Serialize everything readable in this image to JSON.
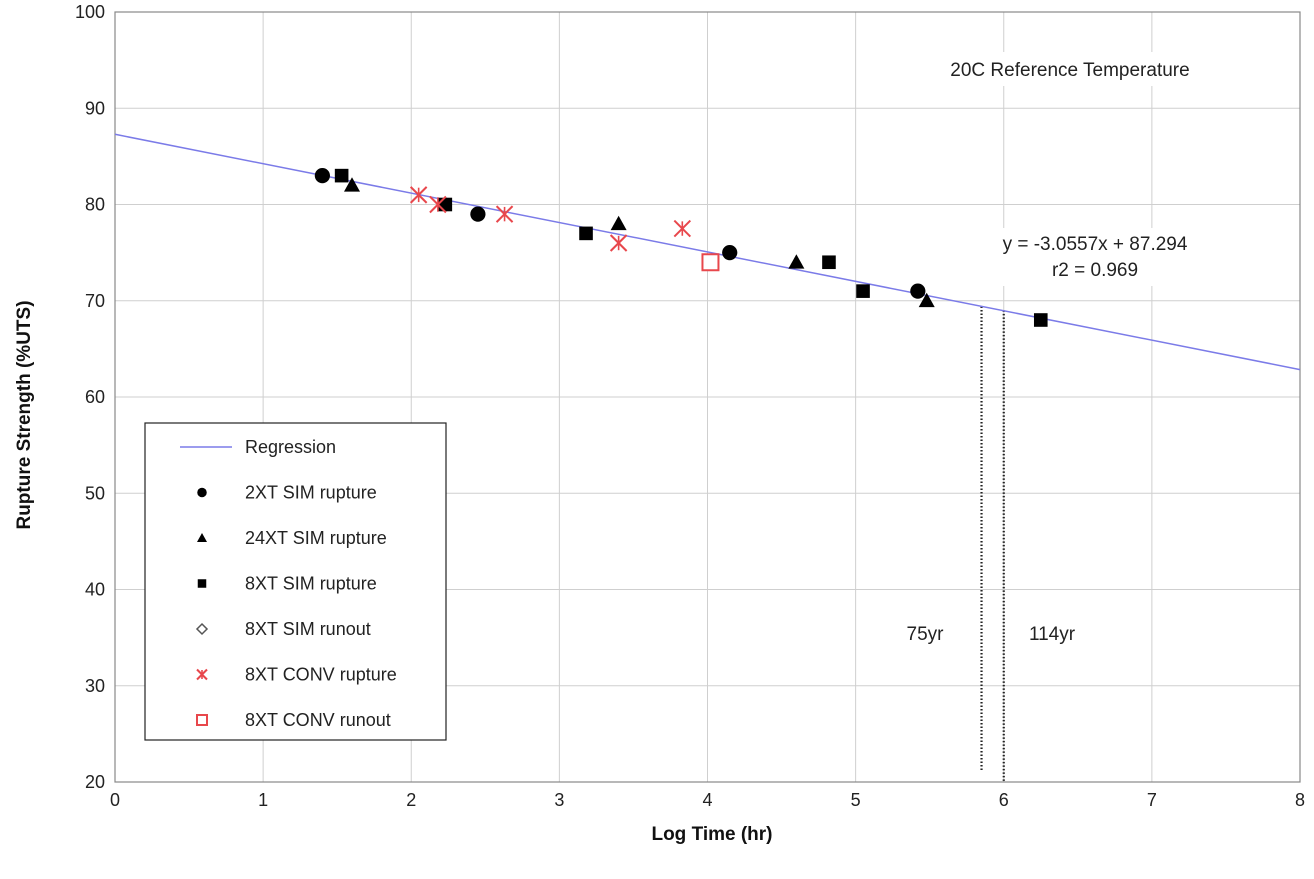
{
  "chart_data": {
    "type": "scatter",
    "xlabel": "Log Time (hr)",
    "ylabel": "Rupture Strength (%UTS)",
    "xlim": [
      0,
      8
    ],
    "ylim": [
      20,
      100
    ],
    "x_ticks": [
      "0",
      "1",
      "2",
      "3",
      "4",
      "5",
      "6",
      "7",
      "8"
    ],
    "y_ticks": [
      "20",
      "30",
      "40",
      "50",
      "60",
      "70",
      "80",
      "90",
      "100"
    ],
    "grid": true,
    "legend_position": "bottom-left",
    "annotations": {
      "reference": "20C Reference Temperature",
      "equation": "y = -3.0557x + 87.294",
      "r2": "r2 = 0.969",
      "label_75": "75yr",
      "label_114": "114yr"
    },
    "vertical_markers": [
      {
        "x": 5.85,
        "y_top": 69.4
      },
      {
        "x": 6.0,
        "y_top": 69.0
      }
    ],
    "regression": {
      "name": "Regression",
      "slope": -3.0557,
      "intercept": 87.294,
      "x_range": [
        0,
        8
      ],
      "color": "#7b7be8"
    },
    "series": [
      {
        "name": "2XT SIM rupture",
        "marker": "circle",
        "color": "#000000",
        "points": [
          [
            1.4,
            83
          ],
          [
            2.45,
            79
          ],
          [
            4.15,
            75
          ],
          [
            5.42,
            71
          ]
        ]
      },
      {
        "name": "24XT SIM rupture",
        "marker": "triangle",
        "color": "#000000",
        "points": [
          [
            1.6,
            82
          ],
          [
            3.4,
            78
          ],
          [
            4.6,
            74
          ],
          [
            5.48,
            70
          ]
        ]
      },
      {
        "name": "8XT SIM rupture",
        "marker": "square",
        "color": "#000000",
        "points": [
          [
            1.53,
            83
          ],
          [
            2.23,
            80
          ],
          [
            3.18,
            77
          ],
          [
            4.82,
            74
          ],
          [
            5.05,
            71
          ],
          [
            6.25,
            68
          ]
        ]
      },
      {
        "name": "8XT SIM runout",
        "marker": "diamond-open",
        "color": "#555555",
        "points": []
      },
      {
        "name": "8XT CONV rupture",
        "marker": "star",
        "color": "#e8474c",
        "points": [
          [
            2.05,
            81
          ],
          [
            2.18,
            80
          ],
          [
            2.63,
            79
          ],
          [
            3.4,
            76
          ],
          [
            3.83,
            77.5
          ]
        ]
      },
      {
        "name": "8XT CONV runout",
        "marker": "square-open",
        "color": "#e8474c",
        "points": [
          [
            4.02,
            74
          ]
        ]
      }
    ]
  }
}
